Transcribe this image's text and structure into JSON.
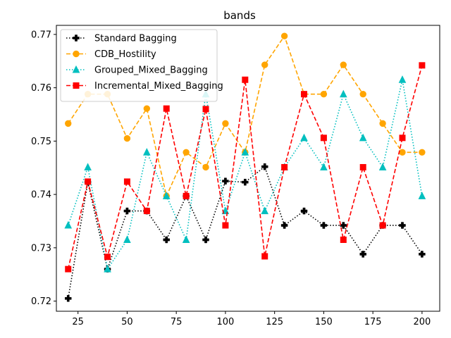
{
  "chart_data": {
    "type": "line",
    "title": "bands",
    "xlabel": "",
    "ylabel": "",
    "x": [
      20,
      30,
      40,
      50,
      60,
      70,
      80,
      90,
      100,
      110,
      120,
      130,
      140,
      150,
      160,
      170,
      180,
      190,
      200
    ],
    "xlim": [
      14,
      209
    ],
    "ylim": [
      0.7181,
      0.7717
    ],
    "xticks": [
      25,
      50,
      75,
      100,
      125,
      150,
      175,
      200
    ],
    "yticks": [
      0.72,
      0.73,
      0.74,
      0.75,
      0.76,
      0.77
    ],
    "xtick_labels": [
      "25",
      "50",
      "75",
      "100",
      "125",
      "150",
      "175",
      "200"
    ],
    "ytick_labels": [
      "0.72",
      "0.73",
      "0.74",
      "0.75",
      "0.76",
      "0.77"
    ],
    "grid": false,
    "legend_position": "top-left",
    "series": [
      {
        "name": "Standard Bagging",
        "color": "#000000",
        "linestyle": "dotted",
        "marker": "plus",
        "values": [
          0.7205,
          0.7423,
          0.726,
          0.7369,
          0.7369,
          0.7315,
          0.7397,
          0.7315,
          0.7425,
          0.7423,
          0.7452,
          0.7342,
          0.7369,
          0.7342,
          0.7342,
          0.7288,
          0.7342,
          0.7342,
          0.7288
        ]
      },
      {
        "name": "CDB_Hostility",
        "color": "#ffa500",
        "linestyle": "dashed",
        "marker": "circle",
        "values": [
          0.7533,
          0.7588,
          0.7588,
          0.7505,
          0.7561,
          0.7397,
          0.7479,
          0.7451,
          0.7533,
          0.7479,
          0.7643,
          0.7697,
          0.7588,
          0.7588,
          0.7643,
          0.7588,
          0.7533,
          0.7479,
          0.7479
        ]
      },
      {
        "name": "Grouped_Mixed_Bagging",
        "color": "#00bfbf",
        "linestyle": "dotted",
        "marker": "triangle",
        "values": [
          0.7342,
          0.7451,
          0.726,
          0.7315,
          0.7479,
          0.7397,
          0.7315,
          0.7588,
          0.7369,
          0.7479,
          0.7369,
          0.7451,
          0.7506,
          0.7451,
          0.7588,
          0.7506,
          0.7451,
          0.7615,
          0.7397
        ]
      },
      {
        "name": "Incremental_Mixed_Bagging",
        "color": "#ff0000",
        "linestyle": "dashed",
        "marker": "square",
        "values": [
          0.726,
          0.7424,
          0.7283,
          0.7424,
          0.7369,
          0.7561,
          0.7397,
          0.756,
          0.7342,
          0.7615,
          0.7284,
          0.7451,
          0.7588,
          0.7506,
          0.7315,
          0.7451,
          0.7342,
          0.7506,
          0.7642
        ]
      }
    ]
  }
}
